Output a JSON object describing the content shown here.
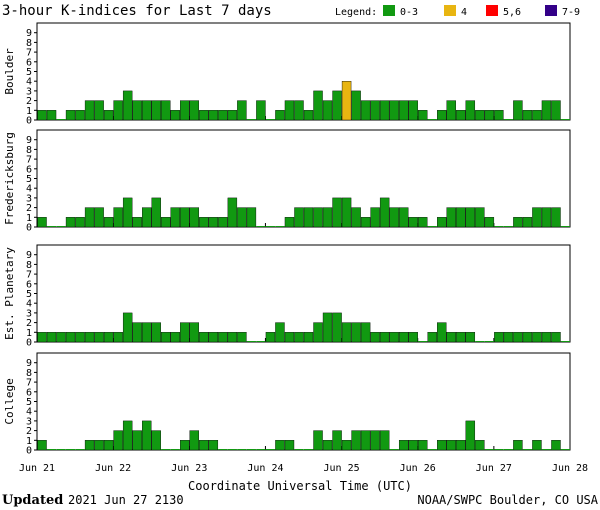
{
  "chart_data": {
    "type": "bar",
    "title": "3-hour K-indices for Last 7 days",
    "legend": {
      "label": "Legend:",
      "items": [
        {
          "label": "0-3",
          "color": "#119911"
        },
        {
          "label": "4",
          "color": "#e8b511"
        },
        {
          "label": "5,6",
          "color": "#ff0000"
        },
        {
          "label": "7-9",
          "color": "#330088"
        }
      ]
    },
    "xlabel": "Coordinate Universal Time (UTC)",
    "x_ticks": [
      "Jun 21",
      "Jun 22",
      "Jun 23",
      "Jun 24",
      "Jun 25",
      "Jun 26",
      "Jun 27",
      "Jun 28"
    ],
    "y_ticks": [
      "0",
      "1",
      "2",
      "3",
      "4",
      "5",
      "6",
      "7",
      "8",
      "9"
    ],
    "ylim": [
      0,
      9
    ],
    "bars_per_day": 8,
    "panels": [
      {
        "name": "Boulder",
        "values": [
          1,
          1,
          0,
          1,
          1,
          2,
          2,
          1,
          2,
          3,
          2,
          2,
          2,
          2,
          1,
          2,
          2,
          1,
          1,
          1,
          1,
          2,
          0,
          2,
          0,
          1,
          2,
          2,
          1,
          3,
          2,
          3,
          4,
          3,
          2,
          2,
          2,
          2,
          2,
          2,
          1,
          0,
          1,
          2,
          1,
          2,
          1,
          1,
          1,
          0,
          2,
          1,
          1,
          2,
          2,
          0
        ]
      },
      {
        "name": "Fredericksburg",
        "values": [
          1,
          0,
          0,
          1,
          1,
          2,
          2,
          1,
          2,
          3,
          1,
          2,
          3,
          1,
          2,
          2,
          2,
          1,
          1,
          1,
          3,
          2,
          2,
          0,
          0,
          0,
          1,
          2,
          2,
          2,
          2,
          3,
          3,
          2,
          1,
          2,
          3,
          2,
          2,
          1,
          1,
          0,
          1,
          2,
          2,
          2,
          2,
          1,
          0,
          0,
          1,
          1,
          2,
          2,
          2,
          0
        ]
      },
      {
        "name": "Est. Planetary",
        "values": [
          1,
          1,
          1,
          1,
          1,
          1,
          1,
          1,
          1,
          3,
          2,
          2,
          2,
          1,
          1,
          2,
          2,
          1,
          1,
          1,
          1,
          1,
          0,
          0,
          1,
          2,
          1,
          1,
          1,
          2,
          3,
          3,
          2,
          2,
          2,
          1,
          1,
          1,
          1,
          1,
          0,
          1,
          2,
          1,
          1,
          1,
          0,
          0,
          1,
          1,
          1,
          1,
          1,
          1,
          1,
          0
        ]
      },
      {
        "name": "College",
        "values": [
          1,
          0,
          0,
          0,
          0,
          1,
          1,
          1,
          2,
          3,
          2,
          3,
          2,
          0,
          0,
          1,
          2,
          1,
          1,
          0,
          0,
          0,
          0,
          0,
          0,
          1,
          1,
          0,
          0,
          2,
          1,
          2,
          1,
          2,
          2,
          2,
          2,
          0,
          1,
          1,
          1,
          0,
          1,
          1,
          1,
          3,
          1,
          0,
          0,
          0,
          1,
          0,
          1,
          0,
          1,
          0
        ]
      }
    ]
  },
  "footer": {
    "updated_label": "Updated",
    "updated_value": "2021 Jun 27 2130",
    "source": "NOAA/SWPC Boulder, CO USA"
  }
}
